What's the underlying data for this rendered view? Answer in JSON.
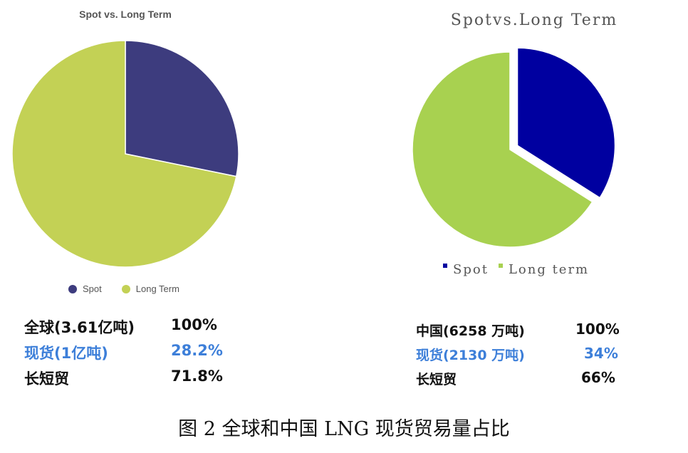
{
  "chart_data": [
    {
      "type": "pie",
      "title": "Spot vs. Long Term",
      "categories": [
        "Spot",
        "Long Term"
      ],
      "values": [
        28.2,
        71.8
      ],
      "colors": [
        "#3d3c7e",
        "#c3d155"
      ],
      "legend_position": "bottom",
      "legend": [
        "Spot",
        "Long Term"
      ]
    },
    {
      "type": "pie",
      "title": "Spotvs.Long Term",
      "categories": [
        "Spot",
        "Long term"
      ],
      "values": [
        34,
        66
      ],
      "colors": [
        "#0000a0",
        "#a8d150"
      ],
      "exploded": "Spot",
      "legend_position": "bottom",
      "legend": [
        "Spot",
        "Long term"
      ]
    }
  ],
  "left_table": [
    {
      "label": "全球(3.61亿吨)",
      "value": "100%",
      "style": "black"
    },
    {
      "label": "现货(1亿吨)",
      "value": "28.2%",
      "style": "blue"
    },
    {
      "label": "长短贸",
      "value": "71.8%",
      "style": "black"
    }
  ],
  "right_table": [
    {
      "label": "中国(6258 万吨)",
      "value": "100%",
      "style": "black"
    },
    {
      "label": "现货(2130 万吨)",
      "value": "34%",
      "style": "blue"
    },
    {
      "label": "长短贸",
      "value": "66%",
      "style": "black"
    }
  ],
  "caption": "图 2 全球和中国 LNG 现货贸易量占比"
}
